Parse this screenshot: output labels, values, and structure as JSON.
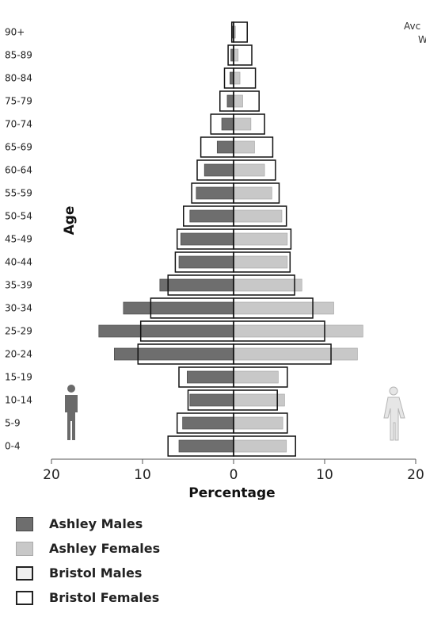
{
  "chart_data": {
    "type": "bar",
    "subtype": "population-pyramid",
    "ylabel": "Age",
    "xlabel": "Percentage",
    "x_ticks": [
      "20",
      "10",
      "0",
      "10",
      "20"
    ],
    "xlim": [
      -20,
      20
    ],
    "categories": [
      "0-4",
      "5-9",
      "10-14",
      "15-19",
      "20-24",
      "25-29",
      "30-34",
      "35-39",
      "40-44",
      "45-49",
      "50-54",
      "55-59",
      "60-64",
      "65-69",
      "70-74",
      "75-79",
      "80-84",
      "85-89",
      "90+"
    ],
    "series": [
      {
        "name": "Ashley Males",
        "side": "left",
        "color": "#6e6e6e",
        "values": [
          6.0,
          5.6,
          4.8,
          5.1,
          13.1,
          14.8,
          12.1,
          8.1,
          6.0,
          5.8,
          4.8,
          4.1,
          3.2,
          1.8,
          1.3,
          0.7,
          0.4,
          0.3,
          0.1
        ]
      },
      {
        "name": "Ashley Females",
        "side": "right",
        "color": "#c8c8c8",
        "values": [
          5.8,
          5.4,
          5.6,
          4.9,
          13.6,
          14.2,
          11.0,
          7.5,
          5.9,
          5.9,
          5.3,
          4.2,
          3.4,
          2.3,
          1.9,
          1.0,
          0.7,
          0.5,
          0.2
        ]
      },
      {
        "name": "Bristol Males",
        "side": "left",
        "color": "#f0f0f0",
        "values": [
          7.2,
          6.2,
          5.0,
          6.0,
          10.5,
          10.2,
          9.1,
          7.2,
          6.4,
          6.2,
          5.5,
          4.6,
          4.0,
          3.6,
          2.5,
          1.5,
          1.0,
          0.6,
          0.2
        ]
      },
      {
        "name": "Bristol Females",
        "side": "right",
        "color": "#ffffff",
        "values": [
          6.8,
          5.9,
          4.8,
          5.9,
          10.7,
          10.0,
          8.7,
          6.7,
          6.2,
          6.3,
          5.8,
          5.0,
          4.6,
          4.3,
          3.4,
          2.8,
          2.4,
          2.0,
          1.5
        ]
      }
    ],
    "annotations": [
      "Avc",
      "W"
    ],
    "legend_position": "bottom-left"
  }
}
